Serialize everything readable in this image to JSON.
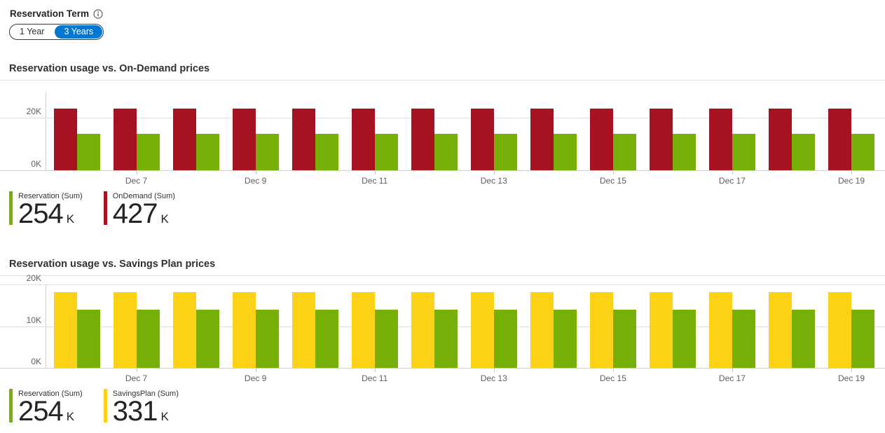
{
  "reservation_term": {
    "label": "Reservation Term",
    "options": [
      {
        "label": "1 Year",
        "selected": false
      },
      {
        "label": "3 Years",
        "selected": true
      }
    ]
  },
  "colors": {
    "reservation_green": "#76b007",
    "ondemand_red": "#a6121f",
    "savingsplan_yellow": "#fcd116",
    "selected_toggle_blue": "#0078d4",
    "axis_text_gray": "#605e5c"
  },
  "chart_data": [
    {
      "type": "bar",
      "title": "Reservation usage vs. On-Demand prices",
      "categories": [
        "Dec 6",
        "Dec 7",
        "Dec 8",
        "Dec 9",
        "Dec 10",
        "Dec 11",
        "Dec 12",
        "Dec 13",
        "Dec 14",
        "Dec 15",
        "Dec 16",
        "Dec 17",
        "Dec 18",
        "Dec 19"
      ],
      "x_tick_labels": [
        "Dec 7",
        "Dec 9",
        "Dec 11",
        "Dec 13",
        "Dec 15",
        "Dec 17",
        "Dec 19"
      ],
      "series": [
        {
          "name": "OnDemand (Sum)",
          "color": "#a6121f",
          "values": [
            23500,
            23500,
            23500,
            23500,
            23500,
            23500,
            23500,
            23500,
            23500,
            23500,
            23500,
            23500,
            23500,
            23500
          ]
        },
        {
          "name": "Reservation (Sum)",
          "color": "#76b007",
          "values": [
            13900,
            13900,
            13900,
            13900,
            13900,
            13900,
            13900,
            13900,
            13900,
            13900,
            13900,
            13900,
            13900,
            13900
          ]
        }
      ],
      "ylim": [
        0,
        29900
      ],
      "y_ticks": [
        {
          "label": "0K",
          "value": 0
        },
        {
          "label": "20K",
          "value": 20000
        }
      ],
      "grid": true,
      "legend_position": "bottom-left",
      "legend": [
        {
          "label": "Reservation (Sum)",
          "value": "254",
          "unit": "K",
          "color": "#76b007"
        },
        {
          "label": "OnDemand (Sum)",
          "value": "427",
          "unit": "K",
          "color": "#a6121f"
        }
      ]
    },
    {
      "type": "bar",
      "title": "Reservation usage vs. Savings Plan prices",
      "categories": [
        "Dec 6",
        "Dec 7",
        "Dec 8",
        "Dec 9",
        "Dec 10",
        "Dec 11",
        "Dec 12",
        "Dec 13",
        "Dec 14",
        "Dec 15",
        "Dec 16",
        "Dec 17",
        "Dec 18",
        "Dec 19"
      ],
      "x_tick_labels": [
        "Dec 7",
        "Dec 9",
        "Dec 11",
        "Dec 13",
        "Dec 15",
        "Dec 17",
        "Dec 19"
      ],
      "series": [
        {
          "name": "SavingsPlan (Sum)",
          "color": "#fcd116",
          "values": [
            18100,
            18100,
            18100,
            18100,
            18100,
            18100,
            18100,
            18100,
            18100,
            18100,
            18100,
            18100,
            18100,
            18100
          ]
        },
        {
          "name": "Reservation (Sum)",
          "color": "#76b007",
          "values": [
            13900,
            13900,
            13900,
            13900,
            13900,
            13900,
            13900,
            13900,
            13900,
            13900,
            13900,
            13900,
            13900,
            13900
          ]
        }
      ],
      "ylim": [
        0,
        20000
      ],
      "y_ticks": [
        {
          "label": "0K",
          "value": 0
        },
        {
          "label": "10K",
          "value": 10000
        },
        {
          "label": "20K",
          "value": 20000
        }
      ],
      "grid": true,
      "legend_position": "bottom-left",
      "legend": [
        {
          "label": "Reservation (Sum)",
          "value": "254",
          "unit": "K",
          "color": "#76b007"
        },
        {
          "label": "SavingsPlan (Sum)",
          "value": "331",
          "unit": "K",
          "color": "#fcd116"
        }
      ]
    }
  ]
}
